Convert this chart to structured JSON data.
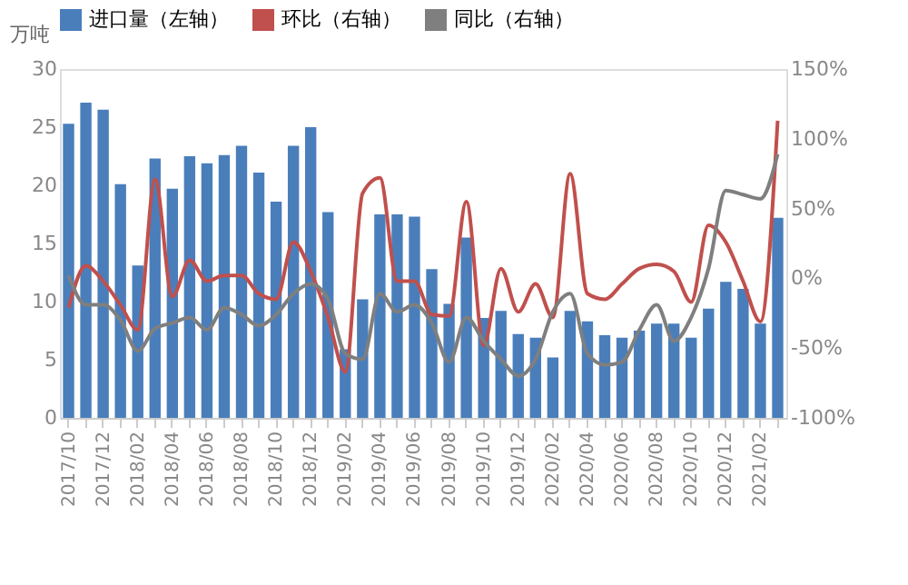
{
  "chart_data": {
    "type": "bar",
    "ylabel": "万吨",
    "legend": "top",
    "marker": "none",
    "line_style": "solid",
    "grid": false,
    "categories": [
      "2017/10",
      null,
      "2017/12",
      null,
      "2018/02",
      null,
      "2018/04",
      null,
      "2018/06",
      null,
      "2018/08",
      null,
      "2018/10",
      null,
      "2018/12",
      null,
      "2019/02",
      null,
      "2019/04",
      null,
      "2019/06",
      null,
      "2019/08",
      null,
      "2019/10",
      null,
      "2019/12",
      null,
      "2020/02",
      null,
      "2020/04",
      null,
      "2020/06",
      null,
      "2020/08",
      null,
      "2020/10",
      null,
      "2020/12",
      null,
      "2021/02",
      null
    ],
    "series": [
      {
        "name": "进口量（左轴）",
        "color": "#4a7ebb",
        "values": [
          25.3,
          27.1,
          26.5,
          20.1,
          13.1,
          22.3,
          19.7,
          22.5,
          21.9,
          22.6,
          23.4,
          21.1,
          18.6,
          23.4,
          25.0,
          17.7,
          5.9,
          10.2,
          17.5,
          17.5,
          17.3,
          12.8,
          9.8,
          15.5,
          8.6,
          9.2,
          7.2,
          6.9,
          5.2,
          9.2,
          8.3,
          7.1,
          6.9,
          7.5,
          8.1,
          8.1,
          6.9,
          9.4,
          11.7,
          11.1,
          8.1,
          17.2
        ]
      },
      {
        "name": "环比（右轴）",
        "type": "line",
        "axis": "y2",
        "color": "#c0504d",
        "values": [
          -21,
          9,
          -2,
          -19,
          -37,
          71,
          -13,
          13,
          -2,
          2,
          2,
          -11,
          -15,
          26,
          5,
          -28,
          -67,
          61,
          72,
          -2,
          -2,
          -26,
          -27,
          55,
          -48,
          7,
          -24,
          -4,
          -28,
          75,
          -11,
          -15,
          -4,
          7,
          10,
          5,
          -17,
          38,
          26,
          -2,
          -31,
          113
        ]
      },
      {
        "name": "同比（右轴）",
        "type": "line",
        "axis": "y2",
        "color": "#7f7f7f",
        "values": [
          2,
          -19,
          -19,
          -30,
          -52,
          -36,
          -32,
          -28,
          -37,
          -21,
          -26,
          -34,
          -26,
          -11,
          -4,
          -15,
          -54,
          -58,
          -11,
          -24,
          -19,
          -32,
          -60,
          -28,
          -45,
          -58,
          -70,
          -58,
          -24,
          -11,
          -54,
          -62,
          -60,
          -37,
          -19,
          -45,
          -28,
          7,
          63,
          60,
          57,
          89
        ]
      }
    ],
    "ylim": [
      0,
      30
    ],
    "yticks": [
      0,
      5,
      10,
      15,
      20,
      25,
      30
    ],
    "y2lim": [
      -100,
      150
    ],
    "y2ticks": [
      {
        "value": -100,
        "label": "-100%"
      },
      {
        "value": -50,
        "label": "-50%"
      },
      {
        "value": 0,
        "label": "0%"
      },
      {
        "value": 50,
        "label": "50%"
      },
      {
        "value": 100,
        "label": "100%"
      },
      {
        "value": 150,
        "label": "150%"
      }
    ]
  }
}
